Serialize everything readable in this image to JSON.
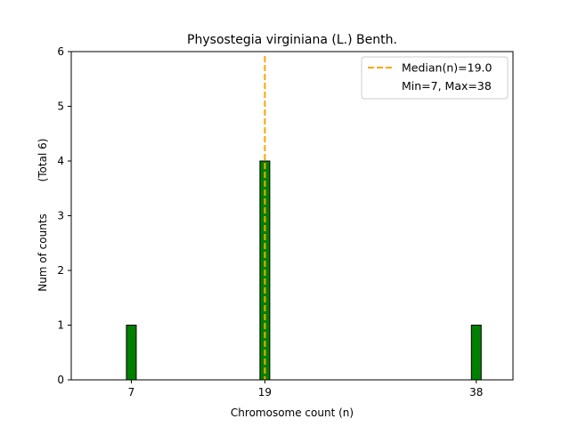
{
  "chart_data": {
    "type": "bar",
    "title": "Physostegia virginiana (L.) Benth.",
    "xlabel": "Chromosome count (n)",
    "ylabel": "Num of counts",
    "ylabel2": "(Total 6)",
    "x": [
      7,
      19,
      38
    ],
    "values": [
      1,
      4,
      1
    ],
    "xlim": [
      1.6,
      41.3
    ],
    "ylim": [
      0,
      6
    ],
    "xticks": [
      "7",
      "19",
      "38"
    ],
    "yticks": [
      "0",
      "1",
      "2",
      "3",
      "4",
      "5",
      "6"
    ],
    "bar_color": "#008000",
    "bar_edge_color": "#000000",
    "median": 19.0,
    "median_color": "#FFA500",
    "legend": {
      "position": "top-right",
      "entries": [
        "Median(n)=19.0",
        "Min=7, Max=38"
      ]
    }
  }
}
